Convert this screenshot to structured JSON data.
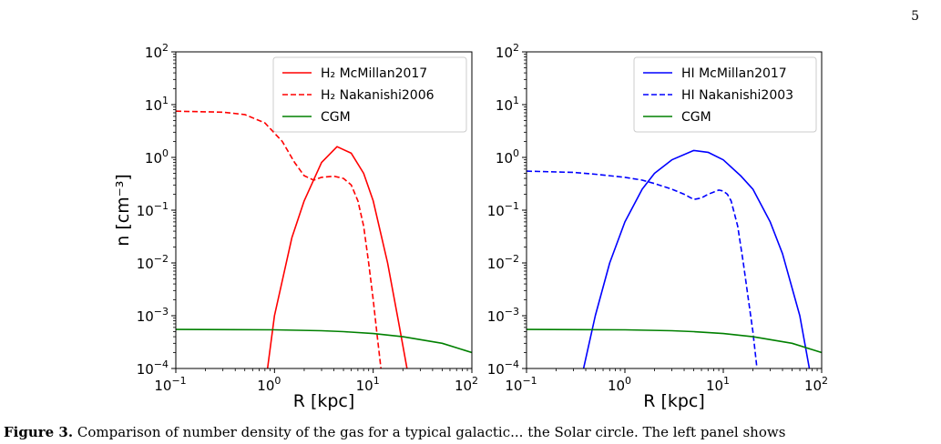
{
  "page_number": "5",
  "caption": {
    "label": "Figure 3.",
    "text": "Comparison of number density of the gas for a typical galactic... the Solar circle. The left panel shows"
  },
  "colors": {
    "red": "#ff0000",
    "blue": "#0000ff",
    "green": "#008000"
  },
  "chart_data": [
    {
      "type": "line",
      "xscale": "log",
      "yscale": "log",
      "xlim": [
        0.1,
        100
      ],
      "ylim": [
        0.0001,
        100
      ],
      "xlabel": "R [kpc]",
      "ylabel": "n [cm⁻³]",
      "legend_placement": "top-right",
      "grid": false,
      "series": [
        {
          "name": "H₂ McMillan2017",
          "color": "#ff0000",
          "linestyle": "solid",
          "x": [
            0.85,
            1,
            1.5,
            2,
            3,
            4.3,
            6,
            8,
            10,
            14,
            18,
            22
          ],
          "y": [
            0.0001,
            0.001,
            0.03,
            0.15,
            0.8,
            1.6,
            1.2,
            0.5,
            0.15,
            0.01,
            0.0008,
            0.0001
          ]
        },
        {
          "name": "H₂ Nakanishi2006",
          "color": "#ff0000",
          "linestyle": "dashed",
          "x": [
            0.1,
            0.3,
            0.5,
            0.8,
            1.2,
            1.6,
            2,
            2.5,
            3,
            4,
            5,
            6,
            7,
            8,
            9,
            10,
            11,
            12
          ],
          "y": [
            7.5,
            7.2,
            6.5,
            4.5,
            2,
            0.8,
            0.45,
            0.37,
            0.42,
            0.44,
            0.4,
            0.3,
            0.15,
            0.05,
            0.01,
            0.002,
            0.0004,
            0.0001
          ]
        },
        {
          "name": "CGM",
          "color": "#008000",
          "linestyle": "solid",
          "x": [
            0.1,
            1,
            3,
            5,
            10,
            20,
            50,
            100
          ],
          "y": [
            0.00055,
            0.00054,
            0.00052,
            0.0005,
            0.00046,
            0.0004,
            0.0003,
            0.0002
          ]
        }
      ]
    },
    {
      "type": "line",
      "xscale": "log",
      "yscale": "log",
      "xlim": [
        0.1,
        100
      ],
      "ylim": [
        0.0001,
        100
      ],
      "xlabel": "R [kpc]",
      "ylabel": "",
      "legend_placement": "top-right",
      "grid": false,
      "series": [
        {
          "name": "HI McMillan2017",
          "color": "#0000ff",
          "linestyle": "solid",
          "x": [
            0.38,
            0.5,
            0.7,
            1,
            1.5,
            2,
            3,
            5,
            7,
            10,
            15,
            20,
            30,
            40,
            60,
            75
          ],
          "y": [
            0.0001,
            0.001,
            0.01,
            0.06,
            0.25,
            0.5,
            0.9,
            1.35,
            1.25,
            0.9,
            0.45,
            0.25,
            0.06,
            0.015,
            0.001,
            0.0001
          ]
        },
        {
          "name": "HI Nakanishi2003",
          "color": "#0000ff",
          "linestyle": "dashed",
          "x": [
            0.1,
            0.3,
            0.5,
            1,
            1.5,
            2,
            3,
            4,
            5,
            6,
            7,
            8,
            9,
            10,
            11,
            12,
            14,
            16,
            18,
            20,
            22
          ],
          "y": [
            0.55,
            0.52,
            0.48,
            0.42,
            0.37,
            0.32,
            0.25,
            0.2,
            0.16,
            0.17,
            0.2,
            0.22,
            0.24,
            0.23,
            0.2,
            0.15,
            0.05,
            0.01,
            0.002,
            0.0005,
            0.0001
          ]
        },
        {
          "name": "CGM",
          "color": "#008000",
          "linestyle": "solid",
          "x": [
            0.1,
            1,
            3,
            5,
            10,
            20,
            50,
            100
          ],
          "y": [
            0.00055,
            0.00054,
            0.00052,
            0.0005,
            0.00046,
            0.0004,
            0.0003,
            0.0002
          ]
        }
      ]
    }
  ]
}
